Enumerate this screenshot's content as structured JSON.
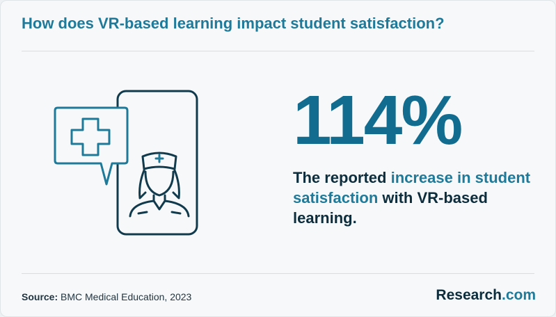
{
  "title": "How does VR-based learning impact student satisfaction?",
  "stat": {
    "value": "114%",
    "description_prefix": "The reported ",
    "description_highlight": "increase in student satisfaction",
    "description_suffix": " with VR-based learning."
  },
  "source": {
    "label": "Source:",
    "text": "BMC Medical Education, 2023"
  },
  "brand": {
    "name": "Research",
    "suffix": ".com"
  },
  "colors": {
    "title": "#1f7a99",
    "stat": "#116c8f",
    "highlight": "#1f7a99",
    "dark_text": "#0d2d3d",
    "background": "#f6f8f9"
  },
  "icons": {
    "illustration": "phone-with-nurse-and-medical-cross-bubble-icon"
  }
}
